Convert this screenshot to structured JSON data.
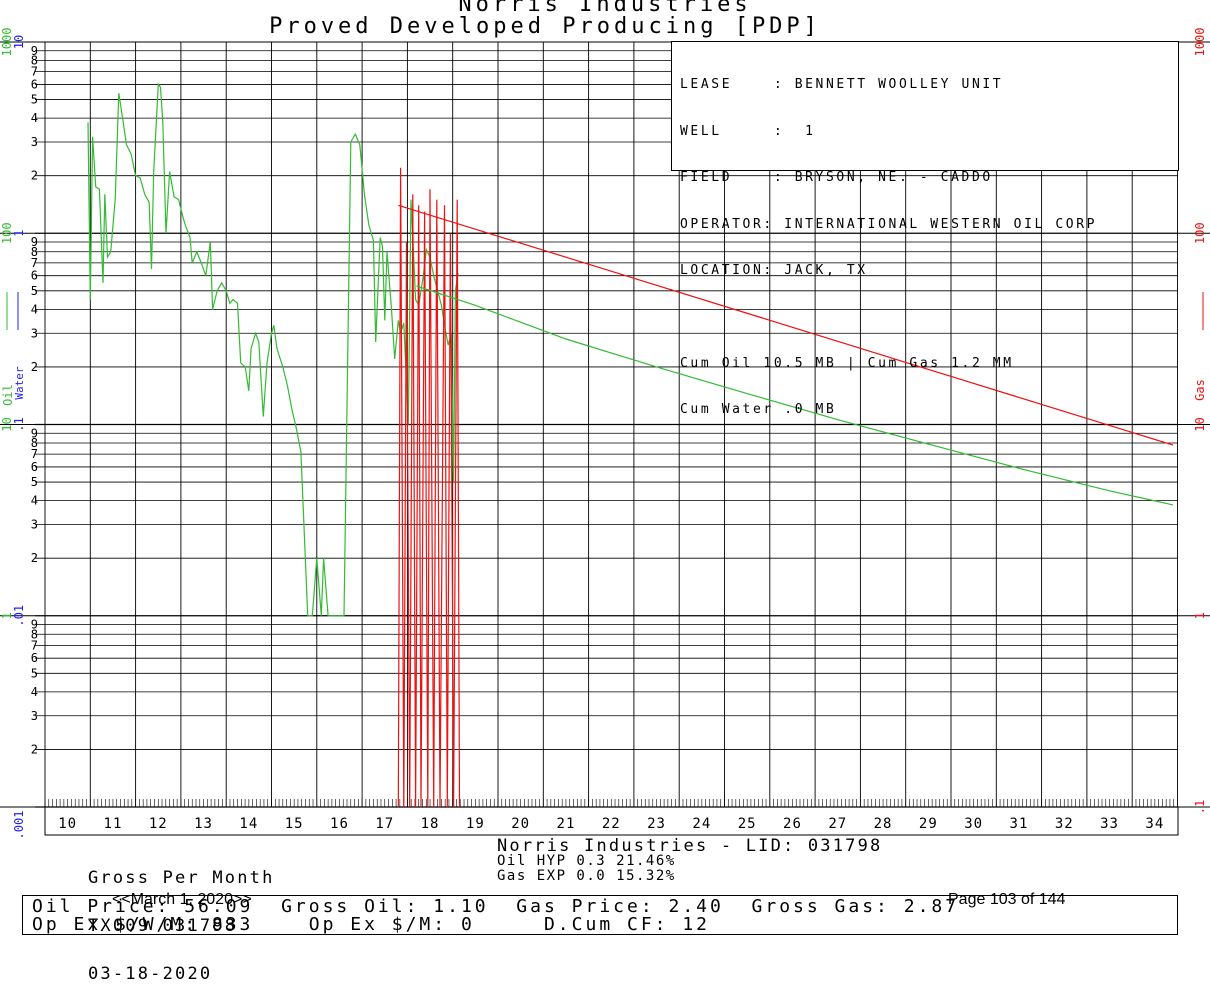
{
  "colors": {
    "oil": "#33bb33",
    "water": "#2222ee",
    "gas": "#ee1111",
    "grid": "#000000"
  },
  "header": {
    "company": "Norris Industries",
    "subtitle": "Proved Developed Producing [PDP]"
  },
  "info_box": {
    "lease": "LEASE    : BENNETT WOOLLEY UNIT",
    "well": "WELL     :  1",
    "field": "FIELD    : BRYSON, NE. - CADDO",
    "operator": "OPERATOR: INTERNATIONAL WESTERN OIL CORP",
    "location": "LOCATION: JACK, TX",
    "cum1": "Cum Oil 10.5 MB | Cum Gas 1.2 MM",
    "cum2": "Cum Water .0 MB"
  },
  "left_axis": {
    "oil_label": "Oil",
    "water_label": "Water",
    "oil_ticks": [
      "1000",
      "100",
      "10",
      "1"
    ],
    "water_ticks": [
      "10",
      "1",
      ".1",
      ".01",
      ".001"
    ],
    "minor_ticks": [
      "9",
      "8",
      "7",
      "6",
      "5",
      "4",
      "3",
      "2"
    ]
  },
  "right_axis": {
    "label": "Gas",
    "ticks": [
      "1000",
      "100",
      "10",
      "1",
      ".1"
    ]
  },
  "footer": {
    "gross_label": "Gross Per Month",
    "id_line": "TX009 031798",
    "date": "03-18-2020",
    "center_title": "Norris Industries - LID: 031798",
    "oil_hyp": "Oil HYP 0.3 21.46%",
    "gas_exp": "Gas EXP 0.0 15.32%",
    "prices_line1": "Oil Price: 56.09  Gross Oil: 1.10  Gas Price: 2.40  Gross Gas: 2.87",
    "prices_line2": "Op Ex $/W/M: 833    Op Ex $/M: 0     D.Cum CF: 12",
    "nav_prev": "<<March 1, 2020>>",
    "page": "Page 103 of 144"
  },
  "chart_data": {
    "type": "line",
    "y_scale": "log",
    "ylim": [
      0.1,
      1000
    ],
    "x_axis_label": "",
    "x_ticks": [
      "10",
      "11",
      "12",
      "13",
      "14",
      "15",
      "16",
      "17",
      "18",
      "19",
      "20",
      "21",
      "22",
      "23",
      "24",
      "25",
      "26",
      "27",
      "28",
      "29",
      "30",
      "31",
      "32",
      "33",
      "34"
    ],
    "xlim": [
      2009.5,
      2034.5
    ],
    "grid": true,
    "series": [
      {
        "name": "Oil",
        "color": "#33bb33",
        "points": [
          [
            2010.45,
            380
          ],
          [
            2010.5,
            45
          ],
          [
            2010.55,
            320
          ],
          [
            2010.62,
            175
          ],
          [
            2010.7,
            170
          ],
          [
            2010.78,
            55
          ],
          [
            2010.82,
            160
          ],
          [
            2010.88,
            75
          ],
          [
            2010.95,
            80
          ],
          [
            2011.05,
            150
          ],
          [
            2011.13,
            540
          ],
          [
            2011.2,
            420
          ],
          [
            2011.3,
            290
          ],
          [
            2011.4,
            260
          ],
          [
            2011.5,
            200
          ],
          [
            2011.6,
            195
          ],
          [
            2011.7,
            160
          ],
          [
            2011.8,
            145
          ],
          [
            2011.85,
            65
          ],
          [
            2011.9,
            210
          ],
          [
            2012.0,
            600
          ],
          [
            2012.05,
            580
          ],
          [
            2012.1,
            380
          ],
          [
            2012.17,
            100
          ],
          [
            2012.25,
            210
          ],
          [
            2012.35,
            155
          ],
          [
            2012.45,
            150
          ],
          [
            2012.55,
            120
          ],
          [
            2012.6,
            110
          ],
          [
            2012.7,
            95
          ],
          [
            2012.75,
            70
          ],
          [
            2012.85,
            80
          ],
          [
            2012.95,
            70
          ],
          [
            2013.05,
            60
          ],
          [
            2013.15,
            90
          ],
          [
            2013.2,
            40
          ],
          [
            2013.3,
            50
          ],
          [
            2013.4,
            55
          ],
          [
            2013.5,
            50
          ],
          [
            2013.58,
            43
          ],
          [
            2013.65,
            45
          ],
          [
            2013.75,
            43
          ],
          [
            2013.82,
            21
          ],
          [
            2013.92,
            20
          ],
          [
            2014.0,
            15
          ],
          [
            2014.05,
            25
          ],
          [
            2014.15,
            30
          ],
          [
            2014.22,
            27
          ],
          [
            2014.32,
            11
          ],
          [
            2014.4,
            21
          ],
          [
            2014.5,
            30
          ],
          [
            2014.55,
            33
          ],
          [
            2014.62,
            25
          ],
          [
            2014.75,
            20
          ],
          [
            2014.85,
            16
          ],
          [
            2014.95,
            12
          ],
          [
            2015.05,
            9.5
          ],
          [
            2015.15,
            7.2
          ],
          [
            2015.3,
            1.0
          ],
          [
            2015.4,
            1.0
          ],
          [
            2015.5,
            2.0
          ],
          [
            2015.6,
            1.0
          ],
          [
            2015.65,
            2.0
          ],
          [
            2015.75,
            1.0
          ],
          [
            2016.1,
            1.0
          ],
          [
            2016.25,
            300
          ],
          [
            2016.35,
            330
          ],
          [
            2016.45,
            290
          ],
          [
            2016.55,
            160
          ],
          [
            2016.65,
            110
          ],
          [
            2016.75,
            92
          ],
          [
            2016.8,
            27
          ],
          [
            2016.9,
            95
          ],
          [
            2016.95,
            85
          ],
          [
            2017.0,
            35
          ],
          [
            2017.05,
            80
          ],
          [
            2017.15,
            40
          ],
          [
            2017.22,
            22
          ],
          [
            2017.3,
            35
          ],
          [
            2017.35,
            30
          ],
          [
            2017.42,
            34
          ],
          [
            2017.52,
            10
          ],
          [
            2017.58,
            150
          ],
          [
            2017.68,
            45
          ],
          [
            2017.75,
            42
          ],
          [
            2017.85,
            60
          ],
          [
            2017.92,
            82
          ],
          [
            2018.0,
            75
          ],
          [
            2018.08,
            60
          ],
          [
            2018.15,
            52
          ],
          [
            2018.25,
            42
          ],
          [
            2018.32,
            33
          ],
          [
            2018.4,
            26
          ],
          [
            2018.47,
            30
          ],
          [
            2018.52,
            5.0
          ],
          [
            2018.56,
            50
          ],
          [
            2018.62,
            62
          ]
        ]
      },
      {
        "name": "Gas",
        "color": "#ee1111",
        "points": [
          [
            2017.3,
            0.1
          ],
          [
            2017.35,
            220
          ],
          [
            2017.42,
            0.1
          ],
          [
            2017.48,
            90
          ],
          [
            2017.55,
            0.1
          ],
          [
            2017.62,
            160
          ],
          [
            2017.68,
            0.1
          ],
          [
            2017.75,
            140
          ],
          [
            2017.8,
            0.1
          ],
          [
            2017.88,
            130
          ],
          [
            2017.95,
            0.1
          ],
          [
            2018.0,
            170
          ],
          [
            2018.08,
            0.1
          ],
          [
            2018.15,
            150
          ],
          [
            2018.22,
            0.1
          ],
          [
            2018.32,
            140
          ],
          [
            2018.38,
            0.1
          ],
          [
            2018.45,
            100
          ],
          [
            2018.52,
            0.1
          ],
          [
            2018.6,
            150
          ],
          [
            2018.65,
            0.1
          ]
        ]
      },
      {
        "name": "Oil Forecast",
        "color": "#33bb33",
        "points": [
          [
            2017.7,
            53
          ],
          [
            2019,
            42
          ],
          [
            2021,
            28
          ],
          [
            2023,
            20
          ],
          [
            2025,
            14.5
          ],
          [
            2027,
            10.6
          ],
          [
            2029,
            7.9
          ],
          [
            2031,
            5.9
          ],
          [
            2033,
            4.5
          ],
          [
            2034.4,
            3.8
          ]
        ]
      },
      {
        "name": "Gas Forecast",
        "color": "#ee1111",
        "points": [
          [
            2017.3,
            140
          ],
          [
            2034.4,
            7.8
          ]
        ]
      }
    ]
  }
}
